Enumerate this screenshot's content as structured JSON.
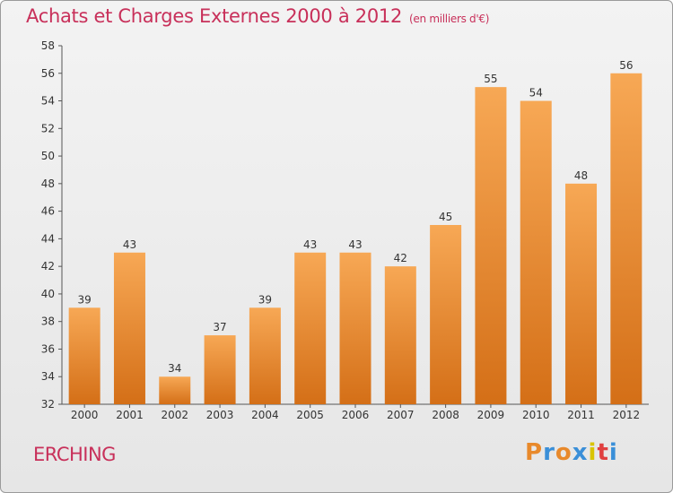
{
  "title": "Achats et Charges Externes 2000 à 2012",
  "subtitle": "(en milliers d'€)",
  "commune": "ERCHING",
  "logo": {
    "letters": [
      "P",
      "r",
      "o",
      "x",
      "i",
      "t",
      "i"
    ],
    "colors": [
      "#e8892b",
      "#3a8fd8",
      "#e8892b",
      "#3a8fd8",
      "#d9c400",
      "#e04040",
      "#3a8fd8"
    ]
  },
  "colors": {
    "bar": "#ef8f35",
    "title": "#c8305a"
  },
  "chart_data": {
    "type": "bar",
    "categories": [
      "2000",
      "2001",
      "2002",
      "2003",
      "2004",
      "2005",
      "2006",
      "2007",
      "2008",
      "2009",
      "2010",
      "2011",
      "2012"
    ],
    "values": [
      39,
      43,
      34,
      37,
      39,
      43,
      43,
      42,
      45,
      55,
      54,
      48,
      56
    ],
    "title": "Achats et Charges Externes 2000 à 2012",
    "ylim": [
      32,
      58
    ],
    "yticks": [
      32,
      34,
      36,
      38,
      40,
      42,
      44,
      46,
      48,
      50,
      52,
      54,
      56,
      58
    ],
    "grid": false
  }
}
